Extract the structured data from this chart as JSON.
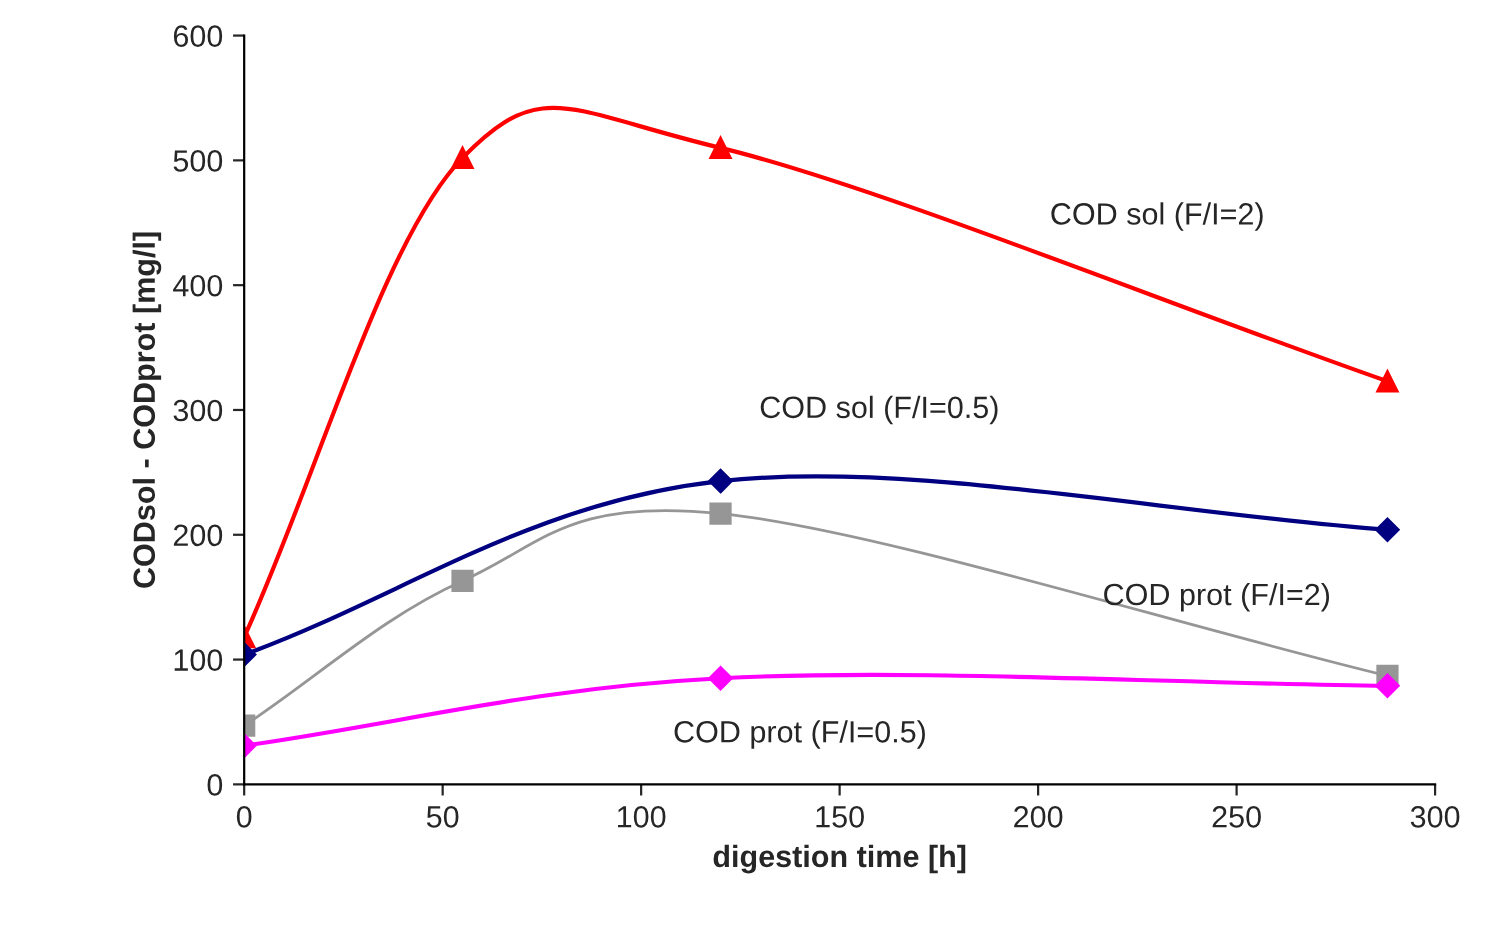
{
  "chart_data": {
    "type": "line",
    "xlabel": "digestion time [h]",
    "ylabel": "CODsol - CODprot [mg/l]",
    "xlim": [
      0,
      300
    ],
    "xticks": [
      0,
      50,
      100,
      150,
      200,
      250,
      300
    ],
    "ylim": [
      0,
      600
    ],
    "yticks": [
      0,
      100,
      200,
      300,
      400,
      500,
      600
    ],
    "grid": false,
    "legend": false,
    "series": [
      {
        "name": "COD sol (F/I=2)",
        "color": "#ff0000",
        "marker": "triangle",
        "x": [
          0,
          55,
          120,
          288
        ],
        "values": [
          118,
          502,
          510,
          323
        ]
      },
      {
        "name": "COD sol (F/I=0.5)",
        "color": "#000080",
        "marker": "diamond",
        "x": [
          0,
          120,
          288
        ],
        "values": [
          104,
          243,
          204
        ]
      },
      {
        "name": "COD prot (F/I=2)",
        "color": "#969696",
        "marker": "square",
        "x": [
          0,
          55,
          120,
          288
        ],
        "values": [
          47,
          163,
          217,
          87
        ]
      },
      {
        "name": "COD prot (F/I=0.5)",
        "color": "#ff00ff",
        "marker": "diamond",
        "x": [
          0,
          120,
          288
        ],
        "values": [
          31,
          85,
          79
        ]
      }
    ]
  }
}
